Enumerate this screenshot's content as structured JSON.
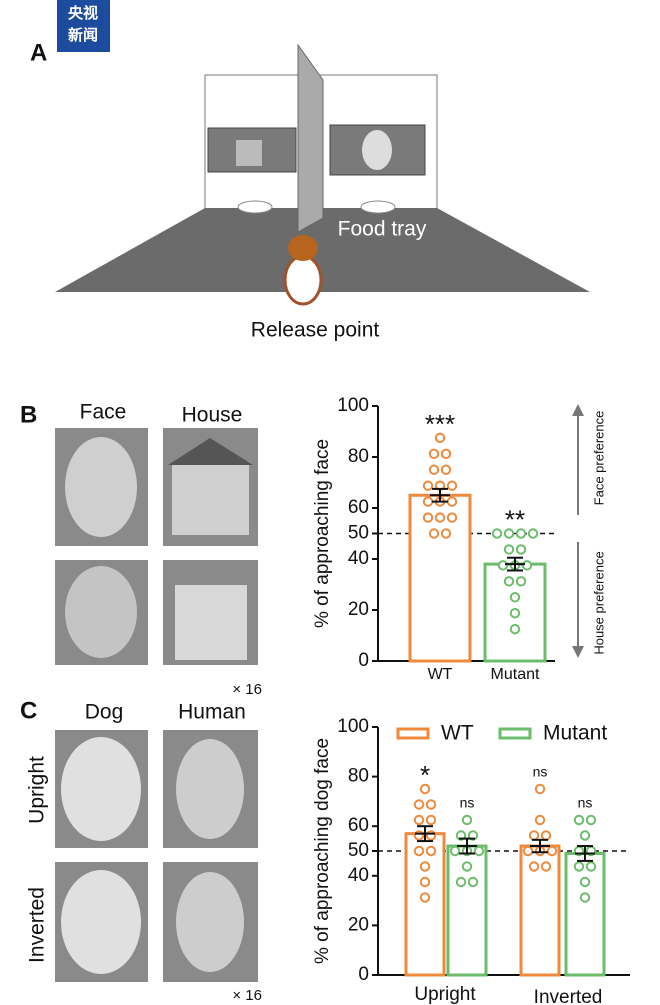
{
  "logo": [
    "央视",
    "新闻"
  ],
  "panel_a": {
    "label": "A",
    "food_tray": "Food tray",
    "release_point": "Release point"
  },
  "panel_b": {
    "label": "B",
    "columns": [
      "Face",
      "House"
    ],
    "repeat": "× 16"
  },
  "panel_c": {
    "label": "C",
    "columns": [
      "Dog",
      "Human"
    ],
    "rows": [
      "Upright",
      "Inverted"
    ],
    "repeat": "× 16"
  },
  "chart_data": [
    {
      "type": "bar",
      "y_label": "% of approaching face",
      "categories": [
        "WT",
        "Mutant"
      ],
      "values": [
        65,
        38
      ],
      "errors": [
        2.5,
        2.5
      ],
      "colors": [
        "#f0893b",
        "#6bbd6b"
      ],
      "points": [
        [
          87.5,
          81.25,
          81.25,
          75,
          75,
          68.75,
          68.75,
          68.75,
          62.5,
          62.5,
          62.5,
          56.25,
          56.25,
          56.25,
          50,
          50
        ],
        [
          50,
          50,
          50,
          50,
          43.75,
          43.75,
          37.5,
          37.5,
          37.5,
          31.25,
          31.25,
          25,
          18.75,
          12.5
        ]
      ],
      "annotations": [
        "***",
        "**"
      ],
      "reference": 50,
      "ylim": [
        0,
        100
      ],
      "yticks": [
        0,
        20,
        40,
        50,
        60,
        80,
        100
      ],
      "side_labels": [
        "Face preference",
        "House preference"
      ]
    },
    {
      "type": "grouped_bar",
      "y_label": "% of approaching dog face",
      "categories": [
        "Upright",
        "Inverted"
      ],
      "reference": 50,
      "ylim": [
        0,
        100
      ],
      "yticks": [
        0,
        20,
        40,
        50,
        60,
        80,
        100
      ],
      "legend": "top",
      "series": [
        {
          "name": "WT",
          "color": "#f0893b",
          "values": [
            57,
            52
          ],
          "errors": [
            3,
            2.5
          ],
          "points": [
            [
              75,
              68.75,
              68.75,
              62.5,
              62.5,
              56.25,
              56.25,
              50,
              50,
              43.75,
              37.5,
              31.25
            ],
            [
              75,
              62.5,
              56.25,
              56.25,
              50,
              50,
              50,
              43.75,
              43.75
            ]
          ],
          "annotations": [
            "*",
            "ns"
          ]
        },
        {
          "name": "Mutant",
          "color": "#6bbd6b",
          "values": [
            52,
            49
          ],
          "errors": [
            3,
            3
          ],
          "points": [
            [
              62.5,
              56.25,
              56.25,
              50,
              50,
              50,
              43.75,
              37.5,
              37.5
            ],
            [
              62.5,
              62.5,
              56.25,
              50,
              50,
              43.75,
              43.75,
              37.5,
              31.25
            ]
          ],
          "annotations": [
            "ns",
            "ns"
          ]
        }
      ]
    }
  ]
}
